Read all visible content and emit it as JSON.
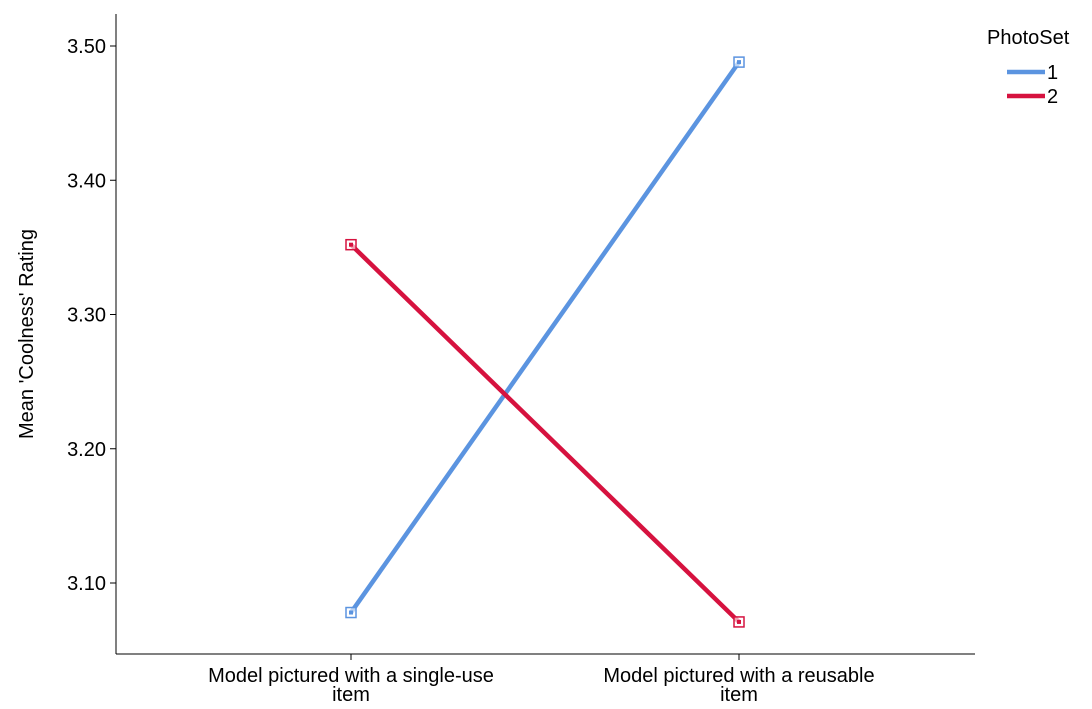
{
  "chart_data": {
    "type": "line",
    "title": "",
    "xlabel": "",
    "ylabel": "Mean 'Coolness' Rating",
    "categories": [
      [
        "Model pictured with a single-use",
        "item"
      ],
      [
        "Model pictured with a reusable",
        "item"
      ]
    ],
    "yticks": [
      "3.10",
      "3.20",
      "3.30",
      "3.40",
      "3.50"
    ],
    "ytick_values": [
      3.1,
      3.2,
      3.3,
      3.4,
      3.5
    ],
    "ylim": [
      3.05,
      3.52
    ],
    "grid": false,
    "legend_title": "PhotoSet",
    "legend_position": "top-right",
    "series": [
      {
        "name": "1",
        "color": "#5b94e0",
        "values": [
          3.078,
          3.488
        ]
      },
      {
        "name": "2",
        "color": "#d6123f",
        "values": [
          3.352,
          3.071
        ]
      }
    ]
  }
}
